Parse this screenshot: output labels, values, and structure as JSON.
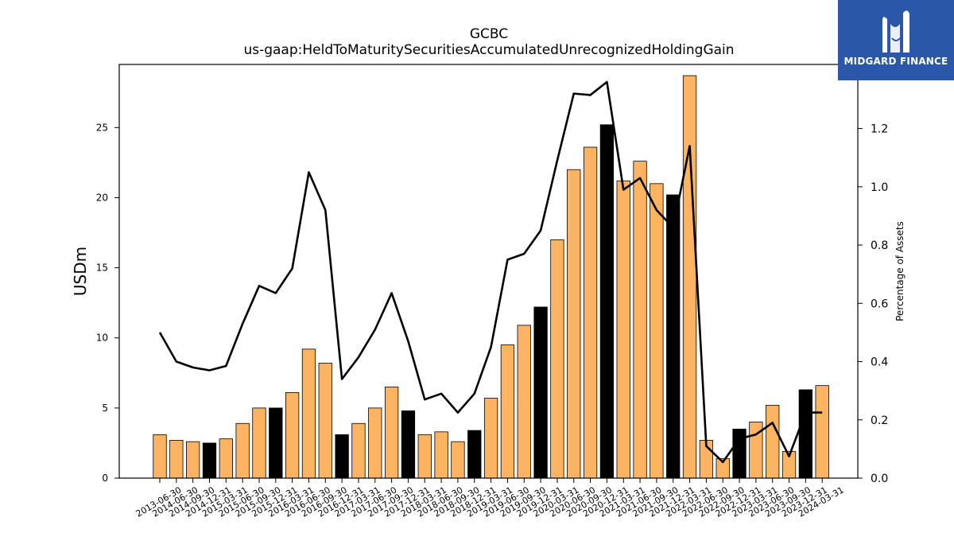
{
  "brand": {
    "name": "MIDGARD FINANCE",
    "bg_color": "#2a57a8",
    "icon": "midgard-logo-icon"
  },
  "chart_data": {
    "type": "bar",
    "title": "GCBC",
    "subtitle": "us-gaap:HeldToMaturitySecuritiesAccumulatedUnrecognizedHoldingGain",
    "ylabel": "USDm",
    "y2label": "Percentage of Assets",
    "ylim": [
      0,
      29.5
    ],
    "y2lim": [
      0,
      1.42
    ],
    "yticks": [
      0,
      5,
      10,
      15,
      20,
      25
    ],
    "y2ticks": [
      0.0,
      0.2,
      0.4,
      0.6,
      0.8,
      1.0,
      1.2
    ],
    "grid": false,
    "colors": {
      "bar": "#fdb462",
      "bar_q4": "#000000",
      "line": "#000000"
    },
    "categories": [
      "2013-06-30",
      "2014-06-30",
      "2014-09-30",
      "2014-12-31",
      "2015-03-31",
      "2015-06-30",
      "2015-09-30",
      "2015-12-31",
      "2016-03-31",
      "2016-06-30",
      "2016-09-30",
      "2016-12-31",
      "2017-03-31",
      "2017-06-30",
      "2017-09-30",
      "2017-12-31",
      "2018-03-31",
      "2018-06-30",
      "2018-09-30",
      "2018-12-31",
      "2019-03-31",
      "2019-06-30",
      "2019-09-30",
      "2019-12-31",
      "2020-03-31",
      "2020-06-30",
      "2020-09-30",
      "2020-12-31",
      "2021-03-31",
      "2021-06-30",
      "2021-09-30",
      "2021-12-31",
      "2022-03-31",
      "2022-06-30",
      "2022-09-30",
      "2022-12-31",
      "2023-03-31",
      "2023-06-30",
      "2023-09-30",
      "2023-12-31",
      "2024-03-31"
    ],
    "series": [
      {
        "name": "",
        "axis": "left",
        "values": [
          3.1,
          2.7,
          2.6,
          2.5,
          2.8,
          3.9,
          5.0,
          5.0,
          6.1,
          9.2,
          8.2,
          3.1,
          3.9,
          5.0,
          6.5,
          4.8,
          3.1,
          3.3,
          2.6,
          3.4,
          5.7,
          9.5,
          10.9,
          12.2,
          17.0,
          22.0,
          23.6,
          25.2,
          21.2,
          22.6,
          21.0,
          20.2,
          28.7,
          2.7,
          1.4,
          3.5,
          4.0,
          5.2,
          1.9,
          6.3,
          6.6
        ]
      },
      {
        "name": "",
        "axis": "right",
        "values": [
          0.5,
          0.4,
          0.38,
          0.37,
          0.385,
          0.53,
          0.66,
          0.635,
          0.72,
          1.05,
          0.92,
          0.34,
          0.415,
          0.51,
          0.635,
          0.47,
          0.27,
          0.29,
          0.225,
          0.29,
          0.45,
          0.75,
          0.77,
          0.85,
          1.09,
          1.32,
          1.315,
          1.36,
          0.99,
          1.03,
          0.92,
          0.86,
          1.14,
          0.11,
          0.055,
          0.135,
          0.15,
          0.19,
          0.075,
          0.225,
          0.225
        ]
      }
    ]
  }
}
